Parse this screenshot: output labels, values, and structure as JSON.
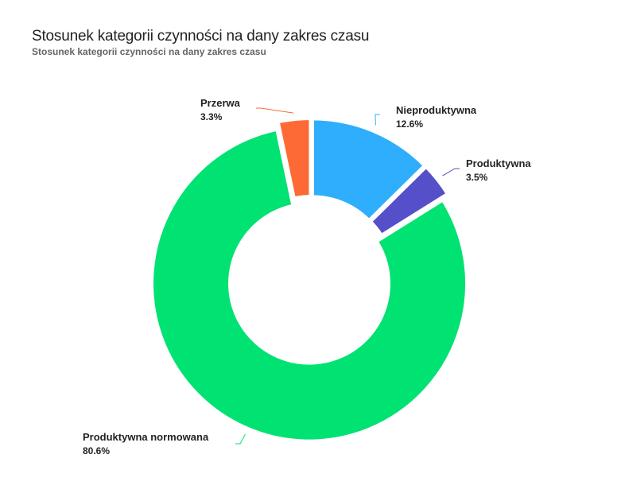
{
  "header": {
    "title": "Stosunek kategorii czynności na dany zakres czasu",
    "subtitle": "Stosunek kategorii czynności na dany zakres czasu"
  },
  "chart_data": {
    "type": "pie",
    "variant": "donut",
    "title": "Stosunek kategorii czynności na dany zakres czasu",
    "subtitle": "Stosunek kategorii czynności na dany zakres czasu",
    "slices": [
      {
        "label": "Nieproduktywna",
        "percent_label": "12.6%",
        "value": 12.6,
        "color": "#2eaefc"
      },
      {
        "label": "Produktywna",
        "percent_label": "3.5%",
        "value": 3.5,
        "color": "#554fc9"
      },
      {
        "label": "Produktywna normowana",
        "percent_label": "80.6%",
        "value": 80.6,
        "color": "#00e272"
      },
      {
        "label": "Przerwa",
        "percent_label": "3.3%",
        "value": 3.3,
        "color": "#fe6a35"
      }
    ],
    "legend": "none",
    "data_labels": "outside with connector lines"
  }
}
